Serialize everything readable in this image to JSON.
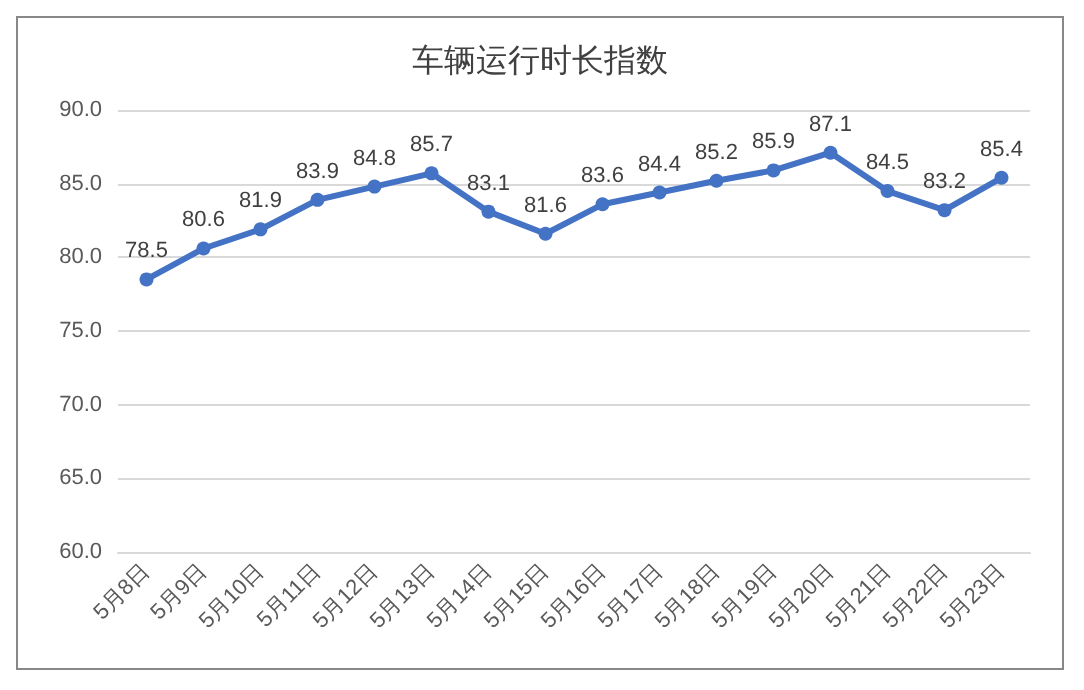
{
  "chart_data": {
    "type": "line",
    "title": "车辆运行时长指数",
    "categories": [
      "5月8日",
      "5月9日",
      "5月10日",
      "5月11日",
      "5月12日",
      "5月13日",
      "5月14日",
      "5月15日",
      "5月16日",
      "5月17日",
      "5月18日",
      "5月19日",
      "5月20日",
      "5月21日",
      "5月22日",
      "5月23日"
    ],
    "series": [
      {
        "color": "#4472c4",
        "values": [
          78.5,
          80.6,
          81.9,
          83.9,
          84.8,
          85.7,
          83.1,
          81.6,
          83.6,
          84.4,
          85.2,
          85.9,
          87.1,
          84.5,
          83.2,
          85.4
        ]
      }
    ],
    "ylim": [
      60,
      90
    ],
    "yticks": [
      {
        "value": 60,
        "label": "60.0"
      },
      {
        "value": 65,
        "label": "65.0"
      },
      {
        "value": 70,
        "label": "70.0"
      },
      {
        "value": 75,
        "label": "75.0"
      },
      {
        "value": 80,
        "label": "80.0"
      },
      {
        "value": 85,
        "label": "85.0"
      },
      {
        "value": 90,
        "label": "90.0"
      }
    ],
    "grid": "y",
    "data_labels": true,
    "marker": "circle",
    "line_style": "solid"
  }
}
